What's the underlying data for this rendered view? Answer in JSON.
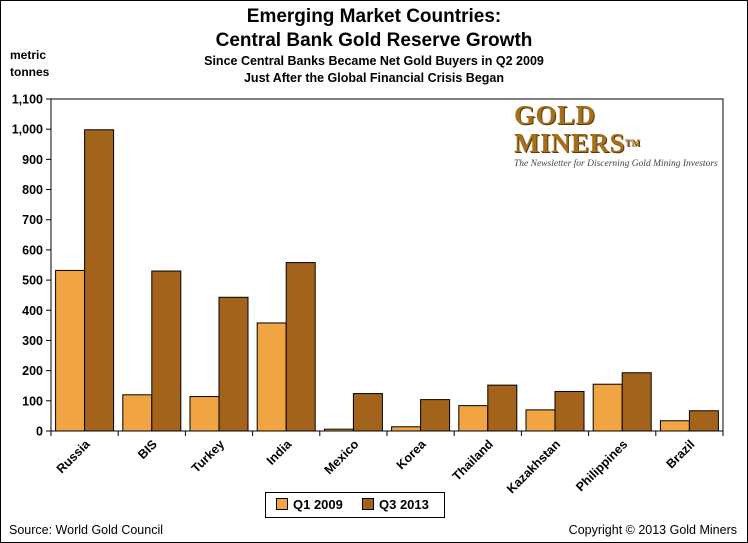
{
  "chart_data": {
    "type": "bar",
    "title": "Emerging Market Countries:",
    "title_line2": "Central Bank Gold Reserve Growth",
    "subtitle": "Since Central Banks Became Net Gold Buyers in Q2 2009",
    "subtitle_line2": "Just After the Global Financial Crisis Began",
    "ylabel": "metric",
    "ylabel_line2": "tonnes",
    "ylim": [
      0,
      1100
    ],
    "yticks": [
      "0",
      "100",
      "200",
      "300",
      "400",
      "500",
      "600",
      "700",
      "800",
      "900",
      "1,000",
      "1,100"
    ],
    "categories": [
      "Russia",
      "BIS",
      "Turkey",
      "India",
      "Mexico",
      "Korea",
      "Thailand",
      "Kazakhstan",
      "Philippines",
      "Brazil"
    ],
    "series": [
      {
        "name": "Q1 2009",
        "color": "#f0a442",
        "values": [
          532,
          120,
          114,
          358,
          6,
          14,
          84,
          70,
          155,
          34
        ]
      },
      {
        "name": "Q3 2013",
        "color": "#a4631b",
        "values": [
          998,
          530,
          443,
          558,
          124,
          104,
          152,
          131,
          193,
          67
        ]
      }
    ],
    "legend_position": "bottom-center",
    "grid": false
  },
  "logo": {
    "main": "GOLD MINERS",
    "tm": "TM",
    "tagline": "The Newsletter for Discerning Gold Mining Investors"
  },
  "footer": {
    "source": "Source: World Gold Council",
    "copyright": "Copyright © 2013 Gold Miners"
  }
}
